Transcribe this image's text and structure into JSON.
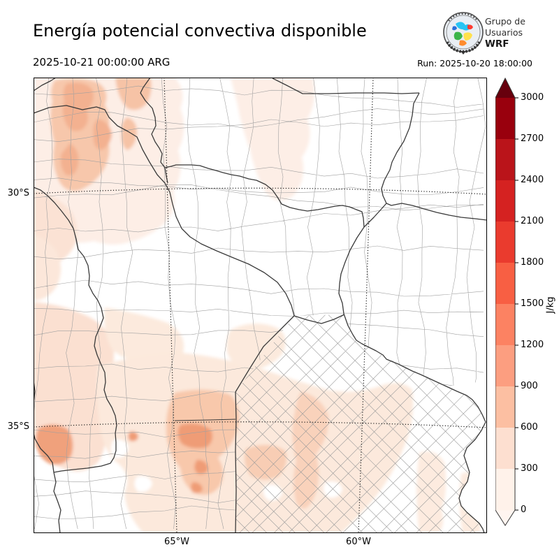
{
  "header": {
    "title": "Energía potencial convectiva disponible",
    "valid_time": "2025-10-21 00:00:00 ARG",
    "run_time": "Run: 2025-10-20 18:00:00",
    "logo": {
      "line1": "Grupo de",
      "line2": "Usuarios",
      "line3": "WRF"
    }
  },
  "map": {
    "lat_labels": {
      "l30": "30°S",
      "l35": "35°S"
    },
    "lon_labels": {
      "l65": "65°W",
      "l60": "60°W"
    }
  },
  "colorbar": {
    "unit": "J/kg",
    "over_color": "#67000d",
    "under_color": "#fff5f0",
    "segments": [
      {
        "label": "3000",
        "color": "#99000d"
      },
      {
        "label": "2700",
        "color": "#ba141a"
      },
      {
        "label": "2400",
        "color": "#d52221"
      },
      {
        "label": "2100",
        "color": "#ea3b2e"
      },
      {
        "label": "1800",
        "color": "#f85f43"
      },
      {
        "label": "1500",
        "color": "#fc8262"
      },
      {
        "label": "1200",
        "color": "#fc9e80"
      },
      {
        "label": "900",
        "color": "#fcbfa2"
      },
      {
        "label": "600",
        "color": "#fddfd0"
      },
      {
        "label": "300",
        "color": "#fff2ea"
      }
    ],
    "bottom_label": "0"
  }
}
